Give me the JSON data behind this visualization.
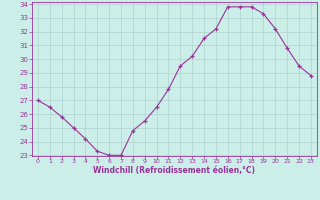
{
  "x": [
    0,
    1,
    2,
    3,
    4,
    5,
    6,
    7,
    8,
    9,
    10,
    11,
    12,
    13,
    14,
    15,
    16,
    17,
    18,
    19,
    20,
    21,
    22,
    23
  ],
  "y": [
    27.0,
    26.5,
    25.8,
    25.0,
    24.2,
    23.3,
    23.0,
    23.0,
    24.8,
    25.5,
    26.5,
    27.8,
    29.5,
    30.2,
    31.5,
    32.2,
    33.8,
    33.8,
    33.8,
    33.3,
    32.2,
    30.8,
    29.5,
    28.8
  ],
  "ylim": [
    23,
    34
  ],
  "xlim": [
    -0.5,
    23.5
  ],
  "yticks": [
    23,
    24,
    25,
    26,
    27,
    28,
    29,
    30,
    31,
    32,
    33,
    34
  ],
  "xticks": [
    0,
    1,
    2,
    3,
    4,
    5,
    6,
    7,
    8,
    9,
    10,
    11,
    12,
    13,
    14,
    15,
    16,
    17,
    18,
    19,
    20,
    21,
    22,
    23
  ],
  "xlabel": "Windchill (Refroidissement éolien,°C)",
  "line_color": "#993399",
  "marker": "+",
  "bg_color": "#cceee8",
  "grid_color": "#aacccc",
  "tick_color": "#993399",
  "label_color": "#993399",
  "spine_color": "#993399"
}
